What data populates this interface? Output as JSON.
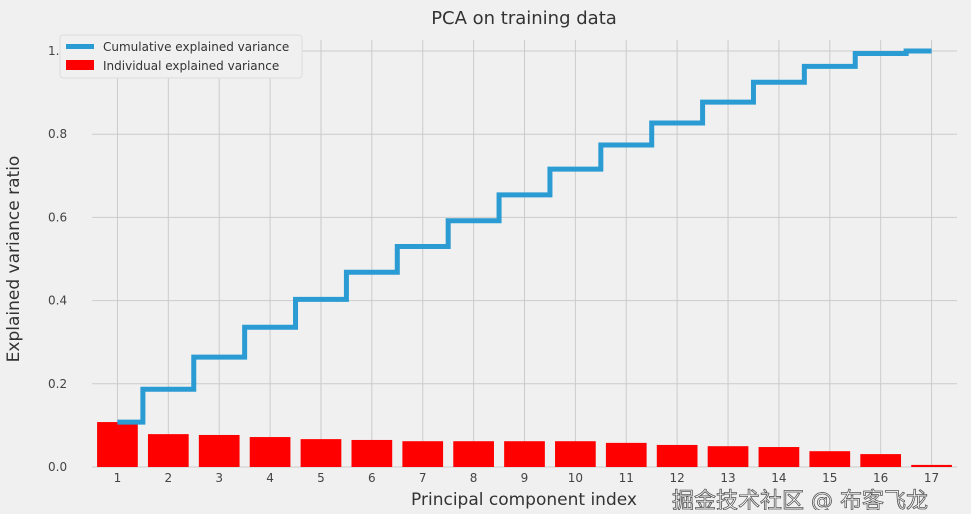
{
  "chart_data": {
    "type": "bar",
    "title": "PCA on training data",
    "xlabel": "Principal component index",
    "ylabel": "Explained variance ratio",
    "x": [
      1,
      2,
      3,
      4,
      5,
      6,
      7,
      8,
      9,
      10,
      11,
      12,
      13,
      14,
      15,
      16,
      17
    ],
    "xtick_labels": [
      "1",
      "2",
      "3",
      "4",
      "5",
      "6",
      "7",
      "8",
      "9",
      "10",
      "11",
      "12",
      "13",
      "14",
      "15",
      "16",
      "17"
    ],
    "yticks": [
      0.0,
      0.2,
      0.4,
      0.6,
      0.8,
      1.0
    ],
    "ytick_labels": [
      "0.0",
      "0.2",
      "0.4",
      "0.6",
      "0.8",
      "1.0"
    ],
    "xlim": [
      0.5,
      17.5
    ],
    "ylim": [
      0,
      1.03
    ],
    "grid": true,
    "legend_position": "top-left",
    "series": [
      {
        "name": "Cumulative explained variance",
        "kind": "step",
        "color": "#2b9bd3",
        "values": [
          0.108,
          0.187,
          0.264,
          0.336,
          0.403,
          0.468,
          0.53,
          0.592,
          0.654,
          0.716,
          0.774,
          0.827,
          0.877,
          0.925,
          0.963,
          0.994,
          1.0
        ]
      },
      {
        "name": "Individual explained variance",
        "kind": "bar",
        "color": "#ff0000",
        "values": [
          0.108,
          0.079,
          0.077,
          0.072,
          0.067,
          0.065,
          0.062,
          0.062,
          0.062,
          0.062,
          0.058,
          0.053,
          0.05,
          0.048,
          0.038,
          0.031,
          0.005
        ]
      }
    ]
  },
  "watermark": "掘金技术社区 @ 布客飞龙"
}
